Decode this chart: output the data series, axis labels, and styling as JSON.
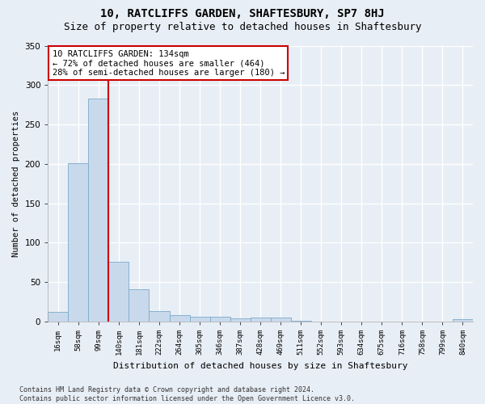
{
  "title_line1": "10, RATCLIFFS GARDEN, SHAFTESBURY, SP7 8HJ",
  "title_line2": "Size of property relative to detached houses in Shaftesbury",
  "xlabel": "Distribution of detached houses by size in Shaftesbury",
  "ylabel": "Number of detached properties",
  "bar_color": "#c9d9ec",
  "bar_edge_color": "#7aaac8",
  "vline_color": "#cc0000",
  "vline_x": 2.5,
  "annotation_text": "10 RATCLIFFS GARDEN: 134sqm\n← 72% of detached houses are smaller (464)\n28% of semi-detached houses are larger (180) →",
  "footer_text": "Contains HM Land Registry data © Crown copyright and database right 2024.\nContains public sector information licensed under the Open Government Licence v3.0.",
  "categories": [
    "16sqm",
    "58sqm",
    "99sqm",
    "140sqm",
    "181sqm",
    "222sqm",
    "264sqm",
    "305sqm",
    "346sqm",
    "387sqm",
    "428sqm",
    "469sqm",
    "511sqm",
    "552sqm",
    "593sqm",
    "634sqm",
    "675sqm",
    "716sqm",
    "758sqm",
    "799sqm",
    "840sqm"
  ],
  "values": [
    12,
    201,
    283,
    76,
    41,
    13,
    8,
    6,
    6,
    4,
    5,
    5,
    1,
    0,
    0,
    0,
    0,
    0,
    0,
    0,
    3
  ],
  "ylim": [
    0,
    350
  ],
  "yticks": [
    0,
    50,
    100,
    150,
    200,
    250,
    300,
    350
  ],
  "fig_bg_color": "#e8eef5",
  "plot_bg_color": "#e8eef5",
  "grid_color": "#ffffff",
  "title_fontsize": 10,
  "subtitle_fontsize": 9,
  "annotation_fontsize": 7.5,
  "footer_fontsize": 6,
  "xlabel_fontsize": 8,
  "ylabel_fontsize": 7.5,
  "xtick_fontsize": 6.5,
  "ytick_fontsize": 7.5
}
